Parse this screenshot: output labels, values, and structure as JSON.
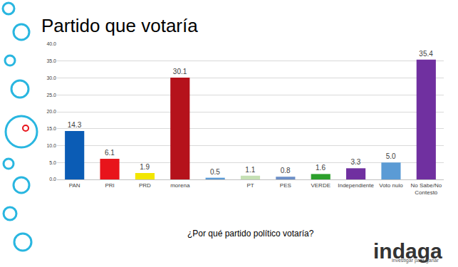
{
  "chart_data": {
    "type": "bar",
    "title": "Partido que votaría",
    "x_label": "¿Por qué partido político votaría?",
    "categories": [
      "PAN",
      "PRI",
      "PRD",
      "morena",
      null,
      "PT",
      "PES",
      "VERDE",
      "Independiente",
      "Voto nulo",
      "No Sabe/No Contestó"
    ],
    "values": [
      14.3,
      6.1,
      1.9,
      30.1,
      0.5,
      1.1,
      0.8,
      1.6,
      3.3,
      5.0,
      35.4
    ],
    "value_labels": [
      "14.3",
      "6.1",
      "1.9",
      "30.1",
      "0.5",
      "1.1",
      "0.8",
      "1.6",
      "3.3",
      "5.0",
      "35.4"
    ],
    "colors": [
      "#0b5cb5",
      "#e8141b",
      "#f2e600",
      "#b5121b",
      "#5b9bd5",
      "#c5e0b4",
      "#6d8fc7",
      "#2ca02c",
      "#7030a0",
      "#5b9bd5",
      "#7030a0"
    ],
    "ylim": [
      0,
      40
    ],
    "yticks": [
      {
        "value": 0,
        "label": "0.0"
      },
      {
        "value": 5,
        "label": "5.0"
      },
      {
        "value": 10,
        "label": "10.0"
      },
      {
        "value": 15,
        "label": "15.0"
      },
      {
        "value": 20,
        "label": "20.0"
      },
      {
        "value": 25,
        "label": "25.0"
      },
      {
        "value": 30,
        "label": "30.0"
      },
      {
        "value": 35,
        "label": "35.0"
      },
      {
        "value": 40,
        "label": "40.0"
      }
    ],
    "grid": true,
    "data_labels": true,
    "annotations": [
      "indaga",
      "investigar para ganar"
    ]
  }
}
